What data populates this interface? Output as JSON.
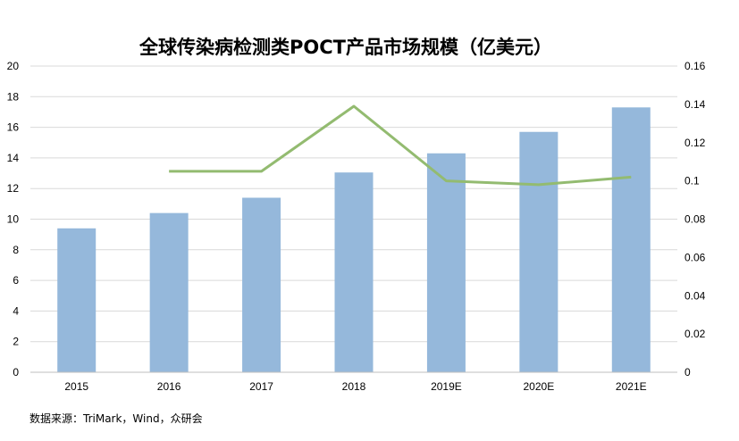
{
  "chart_data": {
    "type": "bar",
    "title": "全球传染病检测类POCT产品市场规模（亿美元）",
    "categories": [
      "2015",
      "2016",
      "2017",
      "2018",
      "2019E",
      "2020E",
      "2021E"
    ],
    "series": [
      {
        "type": "bar",
        "axis": "left",
        "color": "#95b8db",
        "values": [
          9.4,
          10.4,
          11.4,
          13.05,
          14.3,
          15.7,
          17.3
        ]
      },
      {
        "type": "line",
        "axis": "right",
        "color": "#93bb70",
        "values": [
          null,
          0.105,
          0.105,
          0.139,
          0.1,
          0.098,
          0.102
        ]
      }
    ],
    "y_left": {
      "min": 0,
      "max": 20,
      "ticks": [
        "0",
        "2",
        "4",
        "6",
        "8",
        "10",
        "12",
        "14",
        "16",
        "18",
        "20"
      ]
    },
    "y_right": {
      "min": 0,
      "max": 0.16,
      "ticks": [
        "0",
        "0.02",
        "0.04",
        "0.06",
        "0.08",
        "0.1",
        "0.12",
        "0.14",
        "0.16"
      ]
    },
    "grid": "horizontal",
    "gridColor": "#d9d9d9"
  },
  "source": "数据来源：TriMark，Wind，众研会"
}
